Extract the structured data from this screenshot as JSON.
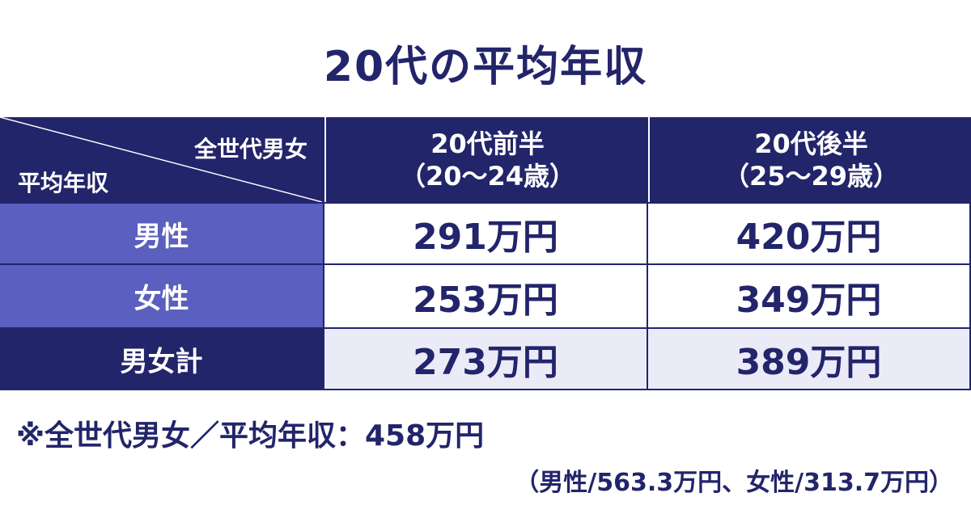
{
  "title": "20代の平均年収",
  "table": {
    "corner": {
      "top": "全世代男女",
      "bottom": "平均年収"
    },
    "columns": [
      {
        "name": "20代前半",
        "range": "（20～24歳）"
      },
      {
        "name": "20代後半",
        "range": "（25～29歳）"
      }
    ],
    "rows": [
      {
        "label": "男性",
        "values": [
          "291万円",
          "420万円"
        ]
      },
      {
        "label": "女性",
        "values": [
          "253万円",
          "349万円"
        ]
      },
      {
        "label": "男女計",
        "values": [
          "273万円",
          "389万円"
        ]
      }
    ]
  },
  "note": {
    "main": "※全世代男女／平均年収：458万円",
    "detail": "（男性/563.3万円、女性/313.7万円）"
  }
}
